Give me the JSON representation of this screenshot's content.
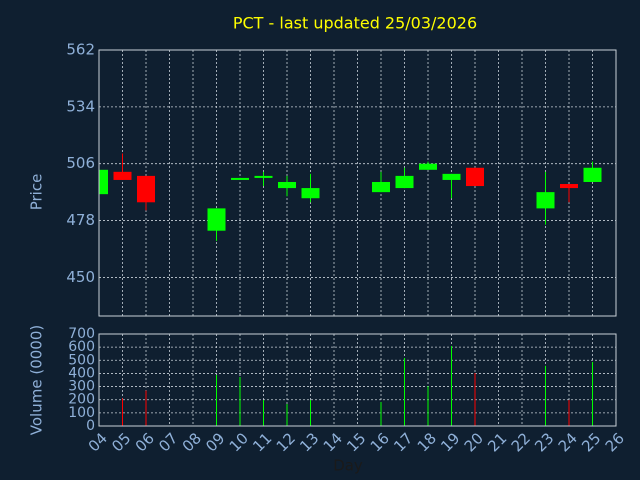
{
  "chart_data": [
    {
      "type": "candlestick",
      "title": "PCT - last updated 25/03/2026",
      "y_label": "Price",
      "x": [
        4,
        5,
        6,
        9,
        10,
        11,
        12,
        13,
        16,
        17,
        18,
        19,
        20,
        23,
        24,
        25
      ],
      "open": [
        491,
        502,
        500,
        473,
        498,
        499,
        494,
        489,
        492,
        494,
        503,
        498,
        504,
        484,
        496,
        497
      ],
      "high": [
        503,
        511,
        500,
        484,
        499,
        502,
        500,
        501,
        502,
        504,
        507,
        501,
        504,
        502,
        496,
        507
      ],
      "low": [
        491,
        498,
        483,
        468,
        498,
        495,
        490,
        487,
        492,
        494,
        503,
        489,
        495,
        476,
        487,
        497
      ],
      "close": [
        503,
        498,
        487,
        484,
        499,
        500,
        497,
        494,
        497,
        500,
        506,
        501,
        495,
        492,
        494,
        504
      ],
      "up_color": "#00ff00",
      "down_color": "#ff0000",
      "xlim": [
        4,
        26
      ],
      "ylim": [
        431,
        562
      ],
      "yticks": [
        450,
        478,
        506,
        534,
        562
      ],
      "grid": true
    },
    {
      "type": "bar",
      "x_label": "Day",
      "y_label": "Volume (0000)",
      "x": [
        5,
        6,
        9,
        10,
        11,
        12,
        13,
        16,
        17,
        18,
        19,
        20,
        23,
        24,
        25
      ],
      "values": [
        210,
        270,
        388,
        373,
        198,
        167,
        198,
        183,
        517,
        304,
        609,
        403,
        457,
        198,
        487
      ],
      "colors": [
        "#ff0000",
        "#ff0000",
        "#00ff00",
        "#00ff00",
        "#00ff00",
        "#00ff00",
        "#00ff00",
        "#00ff00",
        "#00ff00",
        "#00ff00",
        "#00ff00",
        "#ff0000",
        "#00ff00",
        "#ff0000",
        "#00ff00"
      ],
      "xlim": [
        4,
        26
      ],
      "ylim": [
        0,
        700
      ],
      "yticks": [
        0,
        100,
        200,
        300,
        400,
        500,
        600,
        700
      ],
      "grid": true,
      "xticks": [
        {
          "value": 4,
          "label": "04"
        },
        {
          "value": 5,
          "label": "05"
        },
        {
          "value": 6,
          "label": "06"
        },
        {
          "value": 7,
          "label": "07"
        },
        {
          "value": 8,
          "label": "08"
        },
        {
          "value": 9,
          "label": "09"
        },
        10,
        11,
        12,
        13,
        14,
        15,
        16,
        17,
        18,
        19,
        20,
        21,
        22,
        23,
        24,
        25,
        26
      ]
    }
  ]
}
